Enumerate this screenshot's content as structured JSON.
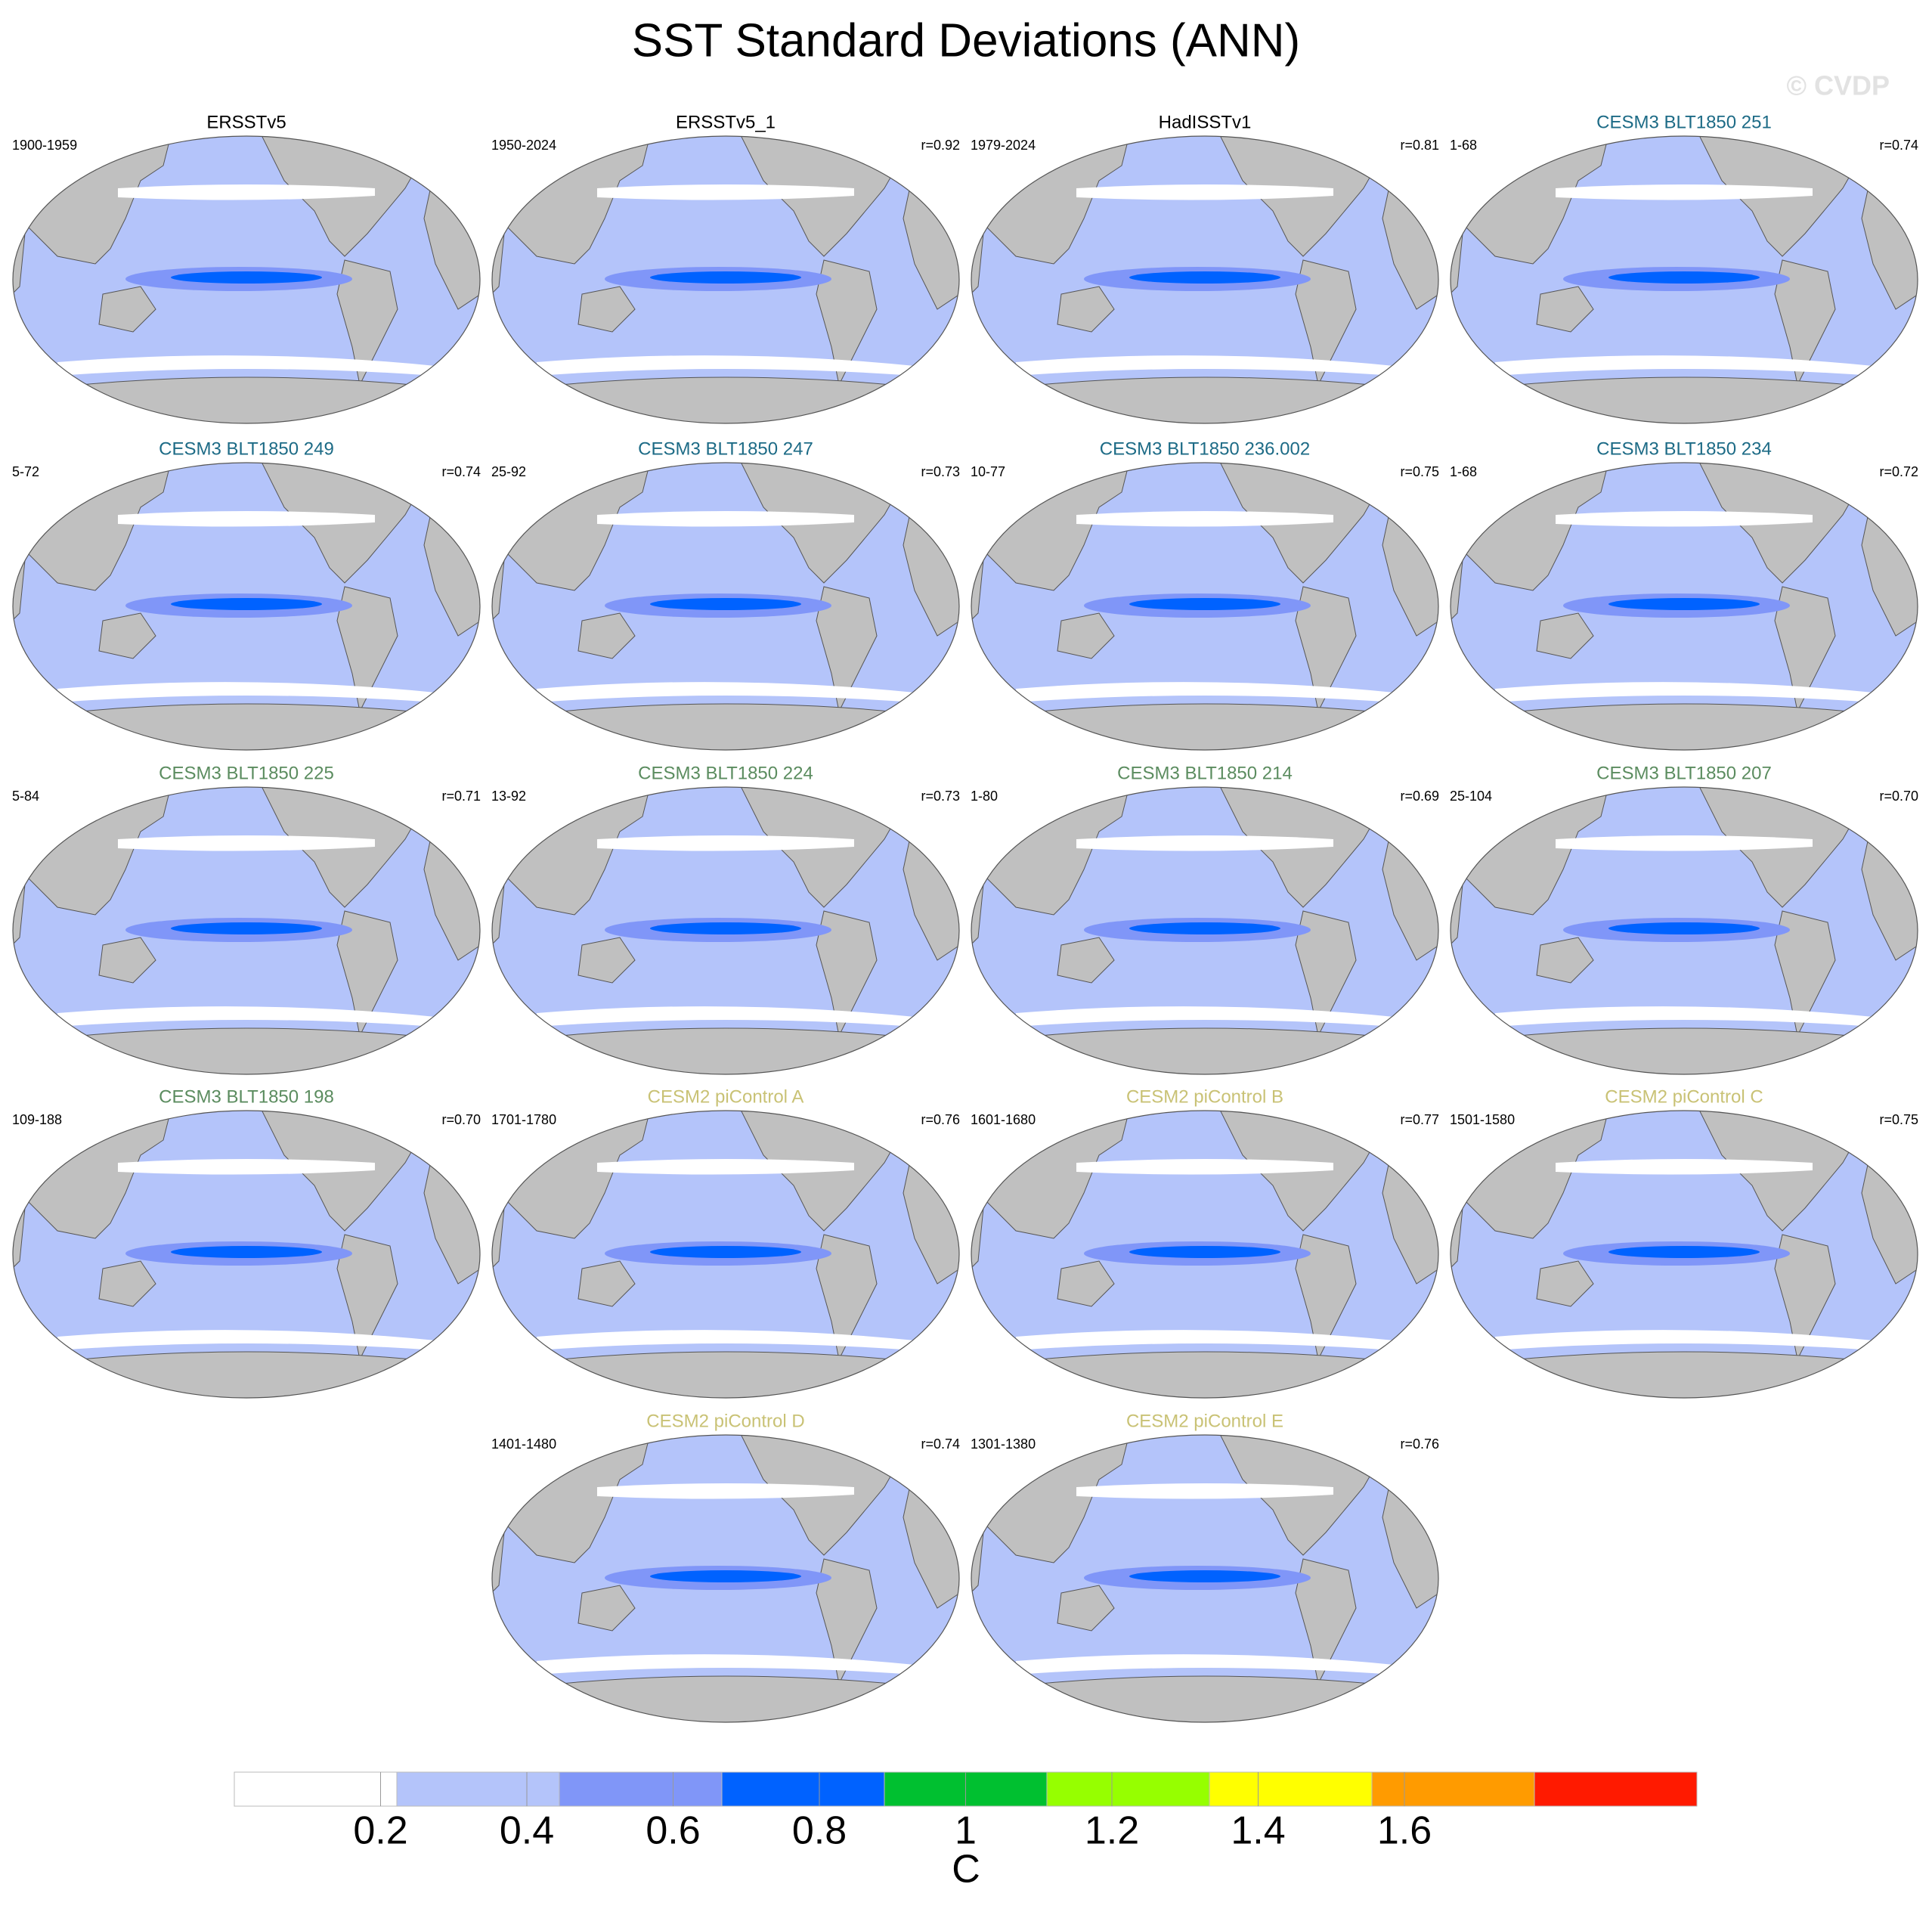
{
  "title": "SST Standard Deviations (ANN)",
  "watermark": "© CVDP",
  "panels": [
    {
      "title": "ERSSTv5",
      "period": "1900-1959",
      "color": "#000000"
    },
    {
      "title": "ERSSTv5_1",
      "period": "1950-2024",
      "r": "r=0.92",
      "color": "#000000"
    },
    {
      "title": "HadISSTv1",
      "period": "1979-2024",
      "r": "r=0.81",
      "color": "#000000"
    },
    {
      "title": "CESM3 BLT1850 251",
      "period": "1-68",
      "r": "r=0.74",
      "color": "#1d6b86"
    },
    {
      "title": "CESM3 BLT1850 249",
      "period": "5-72",
      "r": "r=0.74",
      "color": "#1d6b86"
    },
    {
      "title": "CESM3 BLT1850 247",
      "period": "25-92",
      "r": "r=0.73",
      "color": "#1d6b86"
    },
    {
      "title": "CESM3 BLT1850 236.002",
      "period": "10-77",
      "r": "r=0.75",
      "color": "#1d6b86"
    },
    {
      "title": "CESM3 BLT1850 234",
      "period": "1-68",
      "r": "r=0.72",
      "color": "#1d6b86"
    },
    {
      "title": "CESM3 BLT1850 225",
      "period": "5-84",
      "r": "r=0.71",
      "color": "#5b8c5f"
    },
    {
      "title": "CESM3 BLT1850 224",
      "period": "13-92",
      "r": "r=0.73",
      "color": "#5b8c5f"
    },
    {
      "title": "CESM3 BLT1850 214",
      "period": "1-80",
      "r": "r=0.69",
      "color": "#5b8c5f"
    },
    {
      "title": "CESM3 BLT1850 207",
      "period": "25-104",
      "r": "r=0.70",
      "color": "#5b8c5f"
    },
    {
      "title": "CESM3 BLT1850 198",
      "period": "109-188",
      "r": "r=0.70",
      "color": "#5b8c5f"
    },
    {
      "title": "CESM2 piControl A",
      "period": "1701-1780",
      "r": "r=0.76",
      "color": "#c9c275"
    },
    {
      "title": "CESM2 piControl B",
      "period": "1601-1680",
      "r": "r=0.77",
      "color": "#c9c275"
    },
    {
      "title": "CESM2 piControl C",
      "period": "1501-1580",
      "r": "r=0.75",
      "color": "#c9c275"
    },
    {
      "title": "CESM2 piControl D",
      "period": "1401-1480",
      "r": "r=0.74",
      "color": "#c9c275"
    },
    {
      "title": "CESM2 piControl E",
      "period": "1301-1380",
      "r": "r=0.76",
      "color": "#c9c275"
    }
  ],
  "colorbar": {
    "label": "C",
    "lim": [
      0,
      2
    ],
    "ticks": [
      0.2,
      0.4,
      0.6,
      0.8,
      1,
      1.2,
      1.4,
      1.6
    ],
    "colors": [
      "#ffffff",
      "#b4c4fa",
      "#8096f8",
      "#0062ff",
      "#00c030",
      "#96ff00",
      "#ffff00",
      "#ff9b00",
      "#ff1a00"
    ]
  }
}
